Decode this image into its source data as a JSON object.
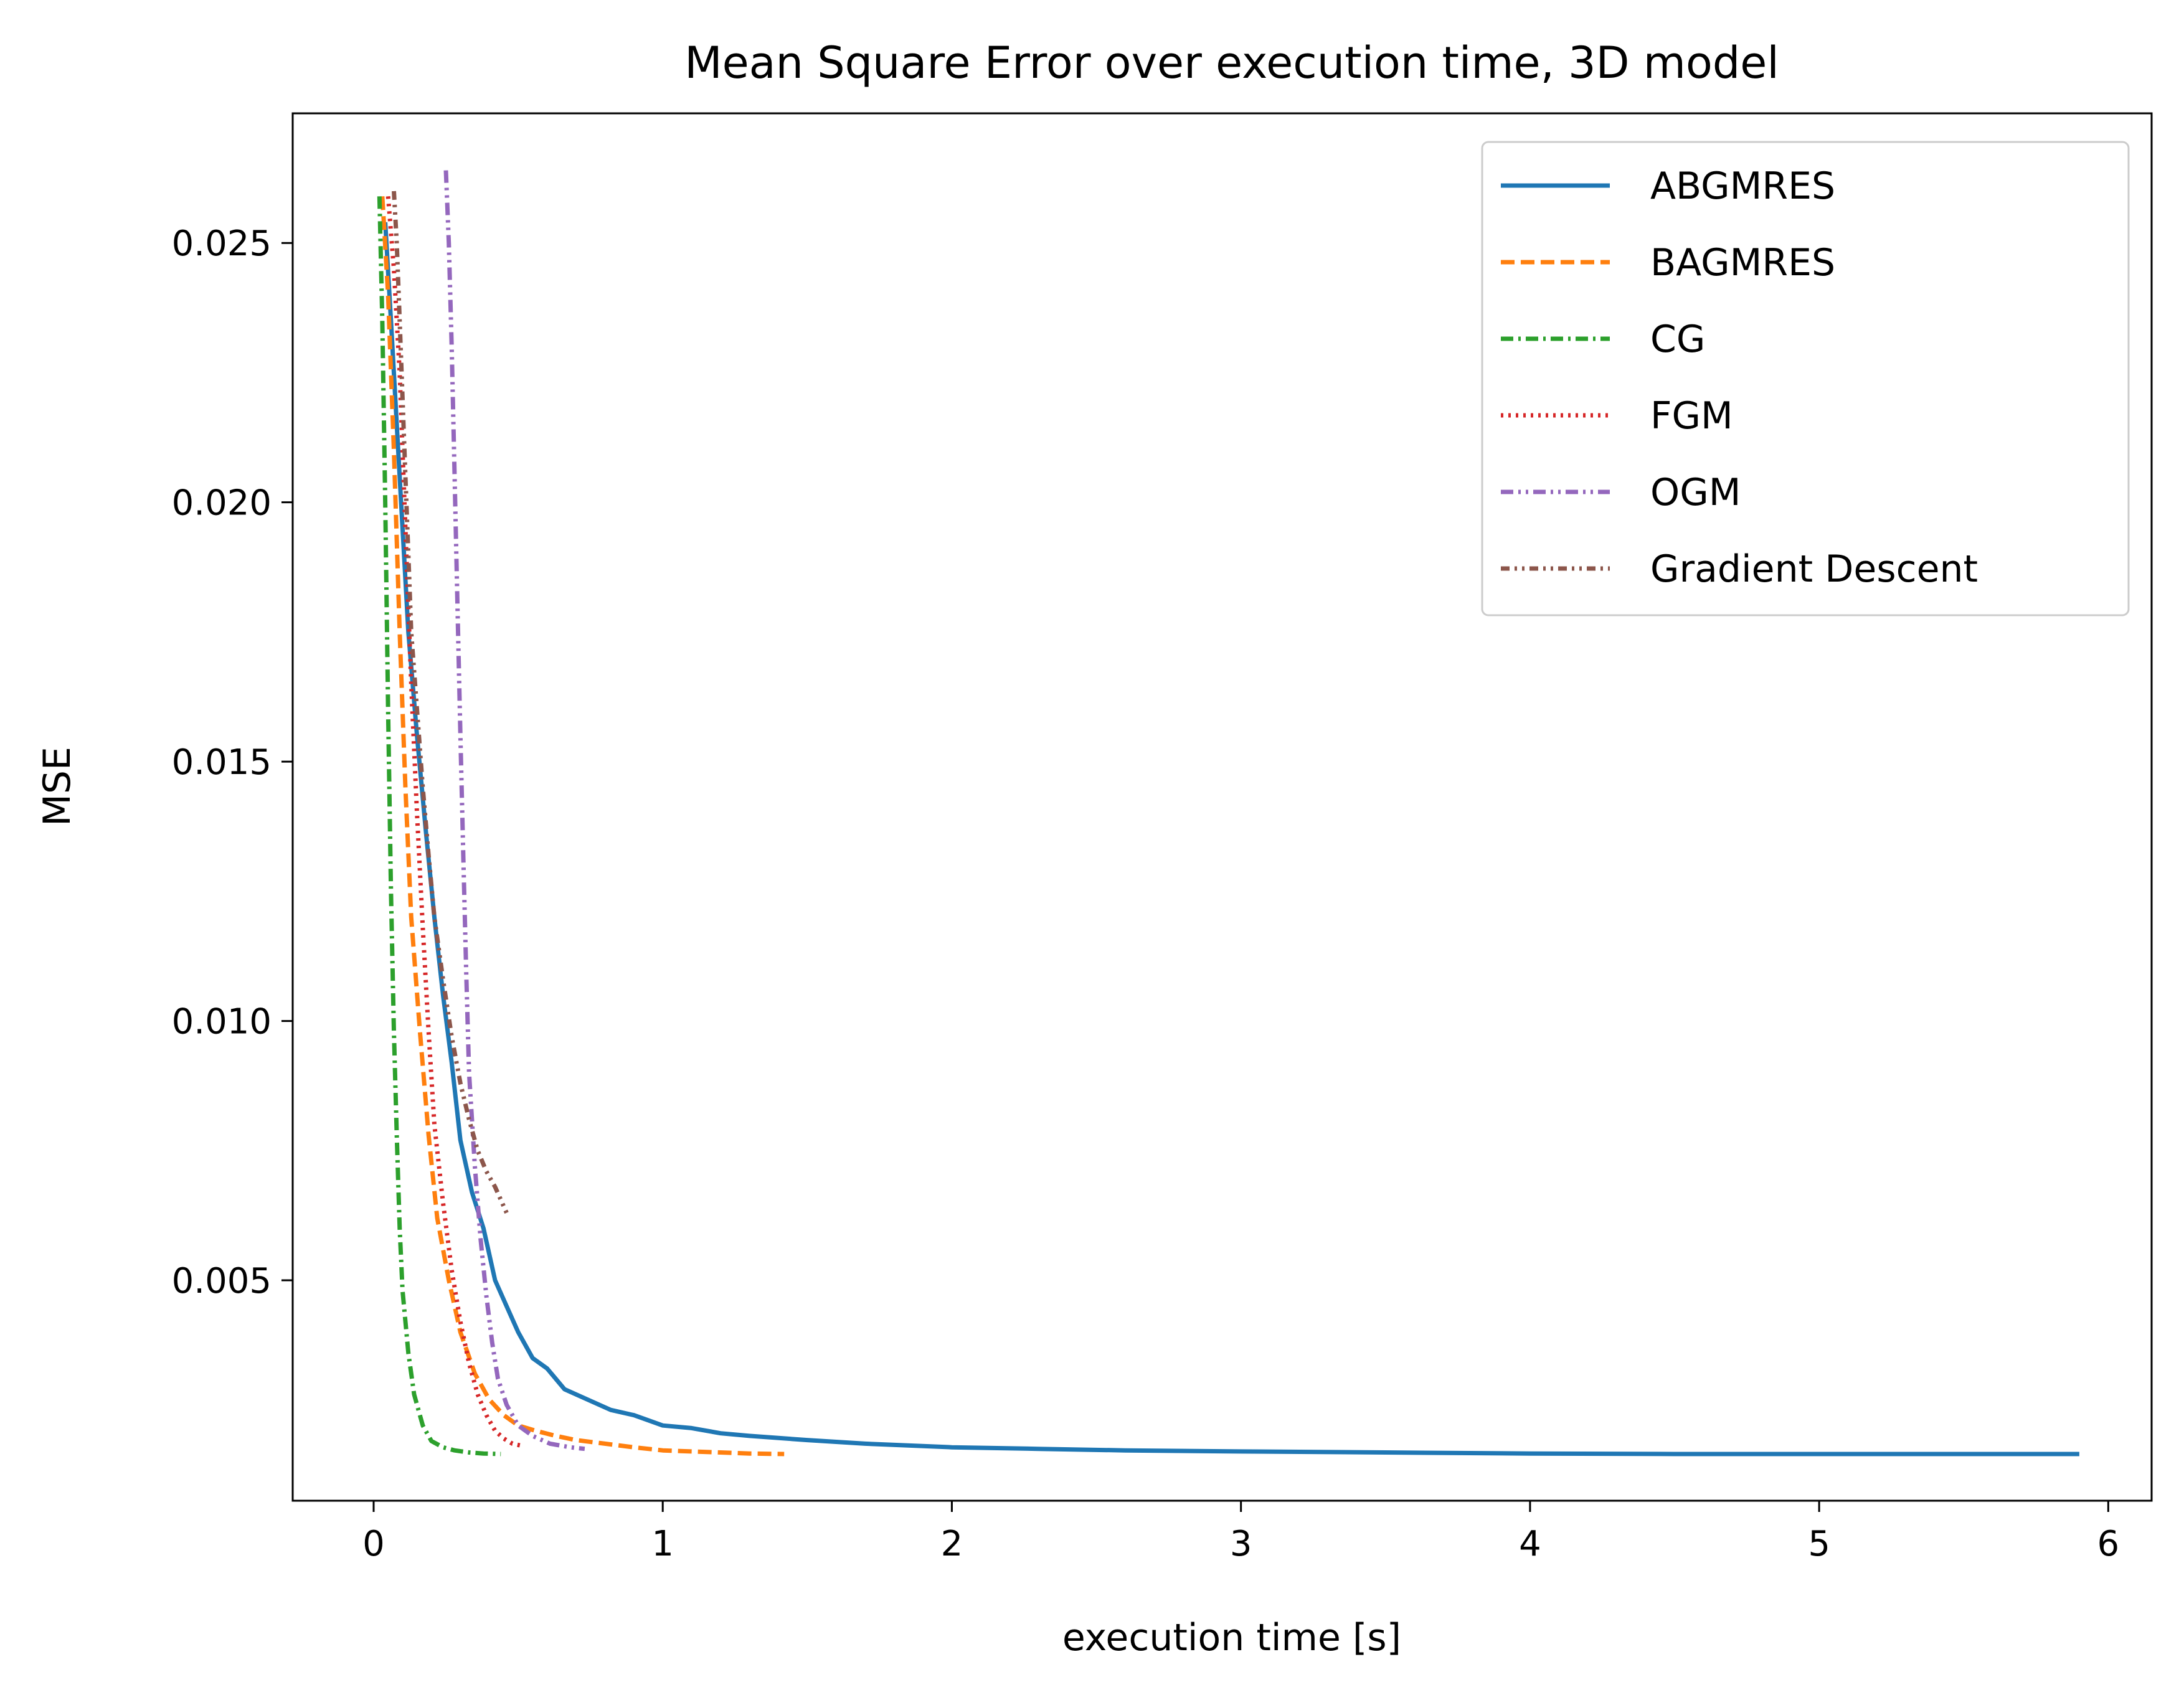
{
  "chart_data": {
    "type": "line",
    "title": "Mean Square Error over execution time, 3D model",
    "xlabel": "execution time [s]",
    "ylabel": "MSE",
    "xlim": [
      -0.28,
      6.15
    ],
    "ylim": [
      0.00075,
      0.0275
    ],
    "xticks": [
      0,
      1,
      2,
      3,
      4,
      5,
      6
    ],
    "xtick_labels": [
      "0",
      "1",
      "2",
      "3",
      "4",
      "5",
      "6"
    ],
    "yticks": [
      0.005,
      0.01,
      0.015,
      0.02,
      0.025
    ],
    "ytick_labels": [
      "0.005",
      "0.010",
      "0.015",
      "0.020",
      "0.025"
    ],
    "grid": false,
    "legend_position": "top-right",
    "series": [
      {
        "name": "ABGMRES",
        "color": "#1f77b4",
        "dash": "solid",
        "x": [
          0.04,
          0.06,
          0.08,
          0.1,
          0.12,
          0.15,
          0.18,
          0.21,
          0.24,
          0.27,
          0.3,
          0.34,
          0.38,
          0.42,
          0.46,
          0.5,
          0.55,
          0.6,
          0.66,
          0.74,
          0.82,
          0.9,
          1.0,
          1.1,
          1.2,
          1.3,
          1.5,
          1.7,
          2.0,
          2.3,
          2.6,
          3.0,
          3.5,
          4.0,
          4.5,
          5.0,
          5.5,
          5.9
        ],
        "y": [
          0.0254,
          0.0235,
          0.0215,
          0.0195,
          0.0175,
          0.0155,
          0.0137,
          0.012,
          0.0105,
          0.0092,
          0.0077,
          0.0067,
          0.006,
          0.005,
          0.0045,
          0.004,
          0.0035,
          0.0033,
          0.0029,
          0.0027,
          0.0025,
          0.0024,
          0.0022,
          0.00215,
          0.00205,
          0.002,
          0.00192,
          0.00185,
          0.00178,
          0.00175,
          0.00172,
          0.0017,
          0.00168,
          0.00166,
          0.00165,
          0.00165,
          0.00165,
          0.00165
        ]
      },
      {
        "name": "BAGMRES",
        "color": "#ff7f0e",
        "dash": "dashed",
        "x": [
          0.03,
          0.05,
          0.07,
          0.09,
          0.11,
          0.13,
          0.16,
          0.19,
          0.22,
          0.26,
          0.3,
          0.35,
          0.4,
          0.45,
          0.5,
          0.56,
          0.63,
          0.7,
          0.8,
          0.9,
          1.0,
          1.1,
          1.2,
          1.3,
          1.42
        ],
        "y": [
          0.0259,
          0.024,
          0.021,
          0.0175,
          0.0145,
          0.012,
          0.0098,
          0.0078,
          0.0062,
          0.005,
          0.004,
          0.0032,
          0.0027,
          0.0024,
          0.0022,
          0.0021,
          0.002,
          0.00192,
          0.00185,
          0.00178,
          0.00172,
          0.0017,
          0.00168,
          0.00166,
          0.00165
        ]
      },
      {
        "name": "CG",
        "color": "#2ca02c",
        "dash": "dashdot",
        "x": [
          0.02,
          0.03,
          0.04,
          0.05,
          0.06,
          0.07,
          0.08,
          0.09,
          0.1,
          0.12,
          0.14,
          0.17,
          0.2,
          0.24,
          0.28,
          0.33,
          0.38,
          0.44
        ],
        "y": [
          0.0259,
          0.0235,
          0.02,
          0.016,
          0.0125,
          0.0098,
          0.0078,
          0.006,
          0.0048,
          0.0036,
          0.0028,
          0.0022,
          0.0019,
          0.00178,
          0.00172,
          0.00168,
          0.00166,
          0.00165
        ]
      },
      {
        "name": "FGM",
        "color": "#d62728",
        "dash": "dotted",
        "x": [
          0.05,
          0.07,
          0.09,
          0.11,
          0.13,
          0.15,
          0.17,
          0.19,
          0.21,
          0.24,
          0.27,
          0.3,
          0.33,
          0.36,
          0.39,
          0.42,
          0.45,
          0.48,
          0.52
        ],
        "y": [
          0.0259,
          0.0245,
          0.0225,
          0.0195,
          0.0165,
          0.014,
          0.0118,
          0.0098,
          0.008,
          0.0065,
          0.0052,
          0.0042,
          0.0034,
          0.0028,
          0.0024,
          0.0021,
          0.00195,
          0.00185,
          0.0018
        ]
      },
      {
        "name": "OGM",
        "color": "#9467bd",
        "dash": "dashdotdot",
        "x": [
          0.25,
          0.26,
          0.27,
          0.28,
          0.29,
          0.3,
          0.31,
          0.32,
          0.33,
          0.35,
          0.37,
          0.39,
          0.41,
          0.43,
          0.46,
          0.5,
          0.55,
          0.61,
          0.68,
          0.73
        ],
        "y": [
          0.0264,
          0.025,
          0.023,
          0.0205,
          0.018,
          0.0155,
          0.0132,
          0.011,
          0.009,
          0.0072,
          0.0058,
          0.0047,
          0.0038,
          0.0031,
          0.0026,
          0.0022,
          0.002,
          0.00185,
          0.00178,
          0.00175
        ]
      },
      {
        "name": "Gradient Descent",
        "color": "#8c564b",
        "dash": "densedashdotdot",
        "x": [
          0.07,
          0.08,
          0.09,
          0.1,
          0.11,
          0.12,
          0.13,
          0.15,
          0.17,
          0.19,
          0.21,
          0.24,
          0.27,
          0.3,
          0.33,
          0.36,
          0.39,
          0.42,
          0.46
        ],
        "y": [
          0.026,
          0.025,
          0.0235,
          0.022,
          0.0205,
          0.019,
          0.0175,
          0.016,
          0.0145,
          0.0132,
          0.012,
          0.0108,
          0.0097,
          0.0088,
          0.0081,
          0.0075,
          0.0071,
          0.0068,
          0.0063
        ]
      }
    ]
  }
}
